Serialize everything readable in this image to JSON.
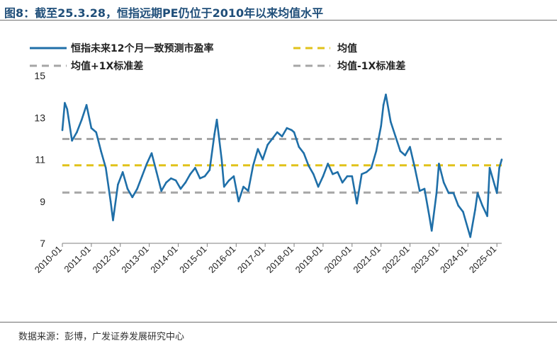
{
  "figure_title": "图8：截至25.3.28，恒指远期PE仍位于2010年以来均值水平",
  "source_note": "数据来源：彭博，广发证券发展研究中心",
  "colors": {
    "series": "#1f6fa8",
    "mean": "#e0c21a",
    "band": "#a6a6a6",
    "title": "#1f4e79"
  },
  "chart_data": {
    "type": "line",
    "ylim": [
      7,
      15
    ],
    "yticks": [
      7,
      9,
      11,
      13,
      15
    ],
    "x_ticks": [
      "2010-01",
      "2011-01",
      "2012-01",
      "2013-01",
      "2014-01",
      "2015-01",
      "2016-01",
      "2017-01",
      "2018-01",
      "2019-01",
      "2020-01",
      "2021-01",
      "2022-01",
      "2023-01",
      "2024-01",
      "2025-01"
    ],
    "x_range": [
      "2010-01",
      "2025-03"
    ],
    "legend": [
      {
        "label": "恒指未来12个月一致预测市盈率",
        "style": "solid"
      },
      {
        "label": "均值",
        "style": "dashed"
      },
      {
        "label": "均值+1X标准差",
        "style": "dashed"
      },
      {
        "label": "均值-1X标准差",
        "style": "dashed"
      }
    ],
    "reference_lines": [
      {
        "name": "均值+1X标准差",
        "value": 11.98
      },
      {
        "name": "均值",
        "value": 10.72
      },
      {
        "name": "均值-1X标准差",
        "value": 9.42
      }
    ],
    "series": [
      {
        "name": "恒指未来12个月一致预测市盈率",
        "x": [
          "2010-01",
          "2010-02",
          "2010-03",
          "2010-05",
          "2010-07",
          "2010-09",
          "2010-11",
          "2011-01",
          "2011-03",
          "2011-05",
          "2011-07",
          "2011-09",
          "2011-10",
          "2011-12",
          "2012-02",
          "2012-04",
          "2012-06",
          "2012-08",
          "2012-10",
          "2012-12",
          "2013-02",
          "2013-04",
          "2013-06",
          "2013-08",
          "2013-10",
          "2013-12",
          "2014-02",
          "2014-04",
          "2014-06",
          "2014-08",
          "2014-10",
          "2014-12",
          "2015-02",
          "2015-04",
          "2015-05",
          "2015-07",
          "2015-08",
          "2015-10",
          "2015-12",
          "2016-02",
          "2016-04",
          "2016-06",
          "2016-08",
          "2016-10",
          "2016-12",
          "2017-02",
          "2017-04",
          "2017-06",
          "2017-08",
          "2017-10",
          "2017-12",
          "2018-01",
          "2018-03",
          "2018-05",
          "2018-07",
          "2018-09",
          "2018-11",
          "2019-01",
          "2019-03",
          "2019-05",
          "2019-07",
          "2019-09",
          "2019-11",
          "2020-01",
          "2020-03",
          "2020-05",
          "2020-07",
          "2020-09",
          "2020-11",
          "2021-01",
          "2021-02",
          "2021-03",
          "2021-05",
          "2021-07",
          "2021-09",
          "2021-11",
          "2022-01",
          "2022-03",
          "2022-05",
          "2022-07",
          "2022-09",
          "2022-10",
          "2022-12",
          "2023-01",
          "2023-03",
          "2023-05",
          "2023-07",
          "2023-09",
          "2023-11",
          "2024-01",
          "2024-02",
          "2024-04",
          "2024-05",
          "2024-07",
          "2024-09",
          "2024-10",
          "2024-12",
          "2025-01",
          "2025-02",
          "2025-03"
        ],
        "y": [
          12.4,
          13.7,
          13.4,
          11.9,
          12.3,
          12.9,
          13.6,
          12.5,
          12.3,
          11.4,
          10.6,
          9.0,
          8.1,
          9.8,
          10.4,
          9.6,
          9.2,
          9.6,
          10.2,
          10.8,
          11.3,
          10.4,
          9.5,
          9.9,
          10.1,
          10.0,
          9.6,
          9.9,
          10.3,
          10.6,
          10.1,
          10.2,
          10.5,
          12.2,
          12.9,
          11.0,
          9.7,
          10.0,
          10.2,
          9.0,
          9.7,
          9.5,
          10.7,
          11.5,
          11.0,
          11.7,
          12.0,
          12.3,
          12.1,
          12.5,
          12.4,
          12.3,
          11.6,
          11.3,
          10.7,
          10.3,
          9.7,
          10.2,
          10.8,
          10.3,
          10.4,
          9.9,
          10.2,
          10.2,
          8.9,
          10.3,
          10.4,
          10.6,
          11.4,
          12.6,
          13.6,
          14.1,
          12.8,
          12.1,
          11.4,
          11.2,
          11.6,
          10.6,
          9.5,
          9.6,
          8.3,
          7.6,
          9.4,
          10.8,
          9.9,
          9.4,
          9.4,
          8.8,
          8.5,
          7.7,
          7.3,
          8.6,
          9.4,
          8.8,
          8.3,
          10.6,
          9.8,
          9.4,
          10.6,
          11.0
        ]
      }
    ]
  }
}
